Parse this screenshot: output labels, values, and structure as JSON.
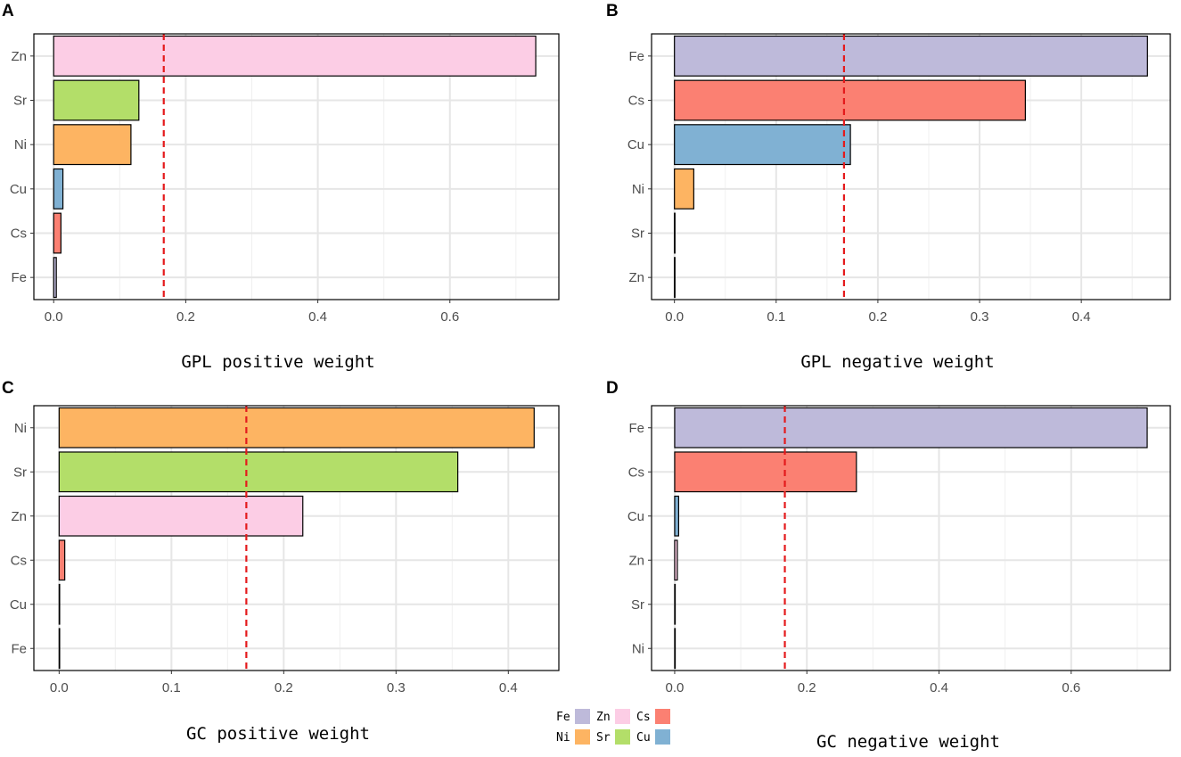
{
  "legend": [
    {
      "label": "Fe",
      "color": "#BEBADA"
    },
    {
      "label": "Zn",
      "color": "#FCCDE5"
    },
    {
      "label": "Cs",
      "color": "#FB8072"
    },
    {
      "label": "Ni",
      "color": "#FDB462"
    },
    {
      "label": "Sr",
      "color": "#B3DE69"
    },
    {
      "label": "Cu",
      "color": "#80B1D3"
    }
  ],
  "chart_data": [
    {
      "type": "bar",
      "orientation": "horizontal",
      "panel": "A",
      "xlabel": "GPL positive weight",
      "categories": [
        "Zn",
        "Sr",
        "Ni",
        "Cu",
        "Cs",
        "Fe"
      ],
      "values": [
        0.73,
        0.129,
        0.117,
        0.014,
        0.011,
        0.004
      ],
      "colors": [
        "#FCCDE5",
        "#B3DE69",
        "#FDB462",
        "#80B1D3",
        "#FB8072",
        "#BEBADA"
      ],
      "xlim": [
        -0.03,
        0.765
      ],
      "ticks": [
        0.0,
        0.2,
        0.4,
        0.6
      ],
      "tick_labels": [
        "0.0",
        "0.2",
        "0.4",
        "0.6"
      ],
      "reference_line": 0.1667
    },
    {
      "type": "bar",
      "orientation": "horizontal",
      "panel": "B",
      "xlabel": "GPL negative weight",
      "categories": [
        "Fe",
        "Cs",
        "Cu",
        "Ni",
        "Sr",
        "Zn"
      ],
      "values": [
        0.465,
        0.345,
        0.173,
        0.019,
        0.0,
        0.0
      ],
      "colors": [
        "#BEBADA",
        "#FB8072",
        "#80B1D3",
        "#FDB462",
        "#B3DE69",
        "#FCCDE5"
      ],
      "xlim": [
        -0.0225,
        0.4875
      ],
      "ticks": [
        0.0,
        0.1,
        0.2,
        0.3,
        0.4
      ],
      "tick_labels": [
        "0.0",
        "0.1",
        "0.2",
        "0.3",
        "0.4"
      ],
      "reference_line": 0.1667
    },
    {
      "type": "bar",
      "orientation": "horizontal",
      "panel": "C",
      "xlabel": "GC positive weight",
      "categories": [
        "Ni",
        "Sr",
        "Zn",
        "Cs",
        "Cu",
        "Fe"
      ],
      "values": [
        0.423,
        0.355,
        0.217,
        0.005,
        0.0,
        0.0
      ],
      "colors": [
        "#FDB462",
        "#B3DE69",
        "#FCCDE5",
        "#FB8072",
        "#80B1D3",
        "#BEBADA"
      ],
      "xlim": [
        -0.0225,
        0.445
      ],
      "ticks": [
        0.0,
        0.1,
        0.2,
        0.3,
        0.4
      ],
      "tick_labels": [
        "0.0",
        "0.1",
        "0.2",
        "0.3",
        "0.4"
      ],
      "reference_line": 0.1667
    },
    {
      "type": "bar",
      "orientation": "horizontal",
      "panel": "D",
      "xlabel": "GC negative weight",
      "categories": [
        "Fe",
        "Cs",
        "Cu",
        "Zn",
        "Sr",
        "Ni"
      ],
      "values": [
        0.715,
        0.275,
        0.006,
        0.004,
        0.0,
        0.0
      ],
      "colors": [
        "#BEBADA",
        "#FB8072",
        "#80B1D3",
        "#FCCDE5",
        "#B3DE69",
        "#FDB462"
      ],
      "xlim": [
        -0.035,
        0.75
      ],
      "ticks": [
        0.0,
        0.2,
        0.4,
        0.6
      ],
      "tick_labels": [
        "0.0",
        "0.2",
        "0.4",
        "0.6"
      ],
      "reference_line": 0.1667
    }
  ]
}
